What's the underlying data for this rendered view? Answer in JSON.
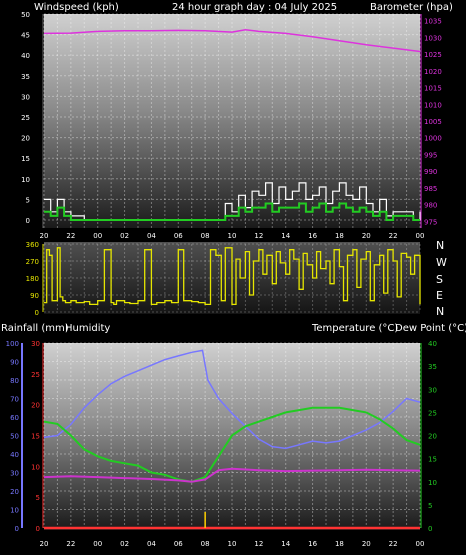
{
  "header": {
    "wind_label": "Windspeed (kph)",
    "title": "24 hour graph day : 04 July 2025",
    "baro_label": "Barometer (hpa)"
  },
  "lower_header": {
    "rain_label": "Rainfall (mm)",
    "humidity_label": "Humidity",
    "temp_label": "Temperature (°C)",
    "dew_label": "Dew Point (°C)"
  },
  "direction_labels": [
    "N",
    "W",
    "S",
    "E",
    "N"
  ],
  "colors": {
    "background": "#000000",
    "wind_avg": "#22cc22",
    "wind_gust": "#ffffff",
    "barometer": "#dd33dd",
    "wind_dir": "#e6e600",
    "humidity": "#7777ff",
    "rainfall": "#ff3333",
    "temperature": "#22cc22",
    "dew_point": "#cc33cc",
    "rain_bar": "#ffd000"
  },
  "chart_data": [
    {
      "type": "line",
      "name": "wind-baro",
      "x_ticks": [
        "20",
        "22",
        "00",
        "02",
        "04",
        "06",
        "08",
        "10",
        "12",
        "14",
        "16",
        "18",
        "20",
        "22",
        "00"
      ],
      "y_left_ticks": [
        0,
        5,
        10,
        15,
        20,
        25,
        30,
        35,
        40,
        45,
        50
      ],
      "y_left_range": [
        0,
        50
      ],
      "y_right_ticks": [
        975,
        980,
        985,
        990,
        995,
        1000,
        1005,
        1010,
        1015,
        1020,
        1025,
        1030,
        1035
      ],
      "y_right_range": [
        973,
        1037
      ],
      "x_range": [
        0,
        28
      ],
      "series": [
        {
          "key": "gust",
          "axis": "left",
          "x": [
            0,
            0.5,
            1,
            1.5,
            2,
            3,
            4,
            5,
            6,
            7,
            8,
            9,
            10,
            11,
            12,
            13,
            13.5,
            14,
            14.5,
            15,
            15.5,
            16,
            16.5,
            17,
            17.5,
            18,
            18.5,
            19,
            19.5,
            20,
            20.5,
            21,
            21.5,
            22,
            22.5,
            23,
            23.5,
            24,
            24.5,
            25,
            25.5,
            26,
            27.5,
            28
          ],
          "y": [
            5,
            2,
            5,
            2,
            1,
            0,
            0,
            0,
            0,
            0,
            0,
            0,
            0,
            0,
            0,
            0,
            4,
            2,
            6,
            3,
            7,
            6,
            9,
            4,
            8,
            5,
            7,
            9,
            5,
            6,
            8,
            4,
            7,
            9,
            6,
            5,
            8,
            4,
            2,
            5,
            1,
            2,
            0,
            2
          ]
        },
        {
          "key": "avg",
          "axis": "left",
          "x": [
            0,
            0.5,
            1,
            1.5,
            2,
            3,
            4,
            5,
            6,
            7,
            8,
            9,
            10,
            11,
            12,
            13,
            13.5,
            14,
            14.5,
            15,
            15.5,
            16,
            16.5,
            17,
            17.5,
            18,
            18.5,
            19,
            19.5,
            20,
            20.5,
            21,
            21.5,
            22,
            22.5,
            23,
            23.5,
            24,
            24.5,
            25,
            25.5,
            26,
            27.5,
            28
          ],
          "y": [
            2,
            1,
            3,
            1,
            0,
            0,
            0,
            0,
            0,
            0,
            0,
            0,
            0,
            0,
            0,
            0,
            1,
            1,
            3,
            2,
            3,
            3,
            4,
            2,
            3,
            3,
            3,
            4,
            2,
            3,
            4,
            2,
            3,
            4,
            3,
            2,
            3,
            2,
            1,
            2,
            0,
            1,
            0,
            0
          ]
        },
        {
          "key": "baro",
          "axis": "right",
          "x": [
            0,
            2,
            4,
            6,
            8,
            10,
            12,
            14,
            15,
            16,
            18,
            20,
            22,
            24,
            26,
            28
          ],
          "y": [
            1031.2,
            1031.3,
            1031.8,
            1032.0,
            1032.0,
            1032.1,
            1032.0,
            1031.6,
            1032.3,
            1031.8,
            1031.2,
            1030.2,
            1029.0,
            1027.8,
            1026.8,
            1025.8
          ]
        }
      ]
    },
    {
      "type": "line",
      "name": "wind-direction",
      "x_ticks": [
        "20",
        "22",
        "00",
        "02",
        "04",
        "06",
        "08",
        "10",
        "12",
        "14",
        "16",
        "18",
        "20",
        "22",
        "00"
      ],
      "y_ticks": [
        0,
        90,
        180,
        270,
        360
      ],
      "y_range": [
        0,
        360
      ],
      "x_range": [
        0,
        28
      ],
      "series": [
        {
          "key": "dir",
          "x": [
            0,
            0.2,
            0.4,
            0.6,
            1.0,
            1.2,
            1.4,
            1.6,
            2.0,
            2.4,
            3.0,
            3.4,
            4.0,
            4.5,
            5.0,
            5.2,
            5.4,
            6.0,
            6.4,
            7.0,
            7.5,
            8.0,
            8.4,
            9.0,
            9.5,
            10.0,
            10.4,
            11.0,
            11.5,
            12.0,
            12.4,
            12.8,
            13.2,
            13.5,
            14.0,
            14.3,
            14.6,
            15.0,
            15.3,
            15.6,
            16.0,
            16.3,
            16.6,
            17.0,
            17.3,
            17.6,
            18.0,
            18.3,
            18.6,
            19.0,
            19.3,
            19.6,
            20.0,
            20.3,
            20.6,
            21.0,
            21.3,
            21.6,
            22.0,
            22.3,
            22.6,
            23.0,
            23.3,
            23.6,
            24.0,
            24.3,
            24.6,
            25.0,
            25.3,
            25.6,
            26.0,
            26.3,
            26.6,
            27.0,
            27.3,
            27.6,
            28.0
          ],
          "y": [
            50,
            330,
            300,
            60,
            340,
            80,
            60,
            50,
            60,
            50,
            55,
            40,
            60,
            330,
            50,
            40,
            60,
            50,
            45,
            60,
            330,
            40,
            50,
            60,
            50,
            330,
            60,
            55,
            50,
            40,
            330,
            300,
            60,
            340,
            40,
            280,
            180,
            320,
            90,
            270,
            330,
            200,
            300,
            150,
            320,
            260,
            200,
            330,
            280,
            120,
            310,
            250,
            180,
            320,
            230,
            270,
            150,
            330,
            240,
            60,
            300,
            330,
            130,
            280,
            320,
            60,
            250,
            300,
            100,
            330,
            270,
            80,
            310,
            290,
            200,
            300,
            40
          ]
        }
      ]
    },
    {
      "type": "line",
      "name": "temp-humidity",
      "x_ticks": [
        "20",
        "22",
        "00",
        "02",
        "04",
        "06",
        "08",
        "10",
        "12",
        "14",
        "16",
        "18",
        "20",
        "22",
        "00"
      ],
      "y_humidity_ticks": [
        0,
        10,
        20,
        30,
        40,
        50,
        60,
        70,
        80,
        90,
        100
      ],
      "y_humidity_range": [
        0,
        100
      ],
      "y_rain_ticks": [
        0,
        5,
        10,
        15,
        20,
        25,
        30
      ],
      "y_rain_range": [
        0,
        30
      ],
      "y_temp_ticks": [
        0,
        5,
        10,
        15,
        20,
        25,
        30,
        35,
        40
      ],
      "y_temp_range": [
        0,
        40
      ],
      "x_range": [
        0,
        28
      ],
      "series": [
        {
          "key": "humidity",
          "axis": "humidity",
          "x": [
            0,
            1,
            2,
            3,
            4,
            5,
            6,
            7,
            8,
            9,
            10,
            11,
            11.8,
            12.2,
            13,
            14,
            15,
            16,
            17,
            18,
            19,
            20,
            21,
            22,
            23,
            24,
            25,
            26,
            27,
            28
          ],
          "y": [
            49,
            50,
            56,
            65,
            72,
            78,
            82,
            85,
            88,
            91,
            93,
            95,
            96,
            80,
            70,
            62,
            55,
            48,
            44,
            43,
            45,
            47,
            46,
            47,
            50,
            53,
            57,
            63,
            70,
            68
          ]
        },
        {
          "key": "temperature",
          "axis": "temp",
          "x": [
            0,
            1,
            2,
            3,
            4,
            5,
            6,
            7,
            8,
            9,
            10,
            11,
            12,
            13,
            14,
            15,
            16,
            17,
            18,
            19,
            20,
            21,
            22,
            23,
            24,
            25,
            26,
            27,
            28
          ],
          "y": [
            23.0,
            22.5,
            20.0,
            17.0,
            15.5,
            14.5,
            14.0,
            13.5,
            12.0,
            11.5,
            10.5,
            10.0,
            11.0,
            15.5,
            20.0,
            22.0,
            23.0,
            24.0,
            25.0,
            25.5,
            26.0,
            26.0,
            26.0,
            25.5,
            25.0,
            23.5,
            21.5,
            19.0,
            18.0
          ]
        },
        {
          "key": "dew_point",
          "axis": "temp",
          "x": [
            0,
            2,
            4,
            6,
            8,
            10,
            11,
            12,
            13,
            14,
            16,
            18,
            20,
            22,
            24,
            26,
            28
          ],
          "y": [
            11.0,
            11.2,
            11.0,
            10.8,
            10.6,
            10.3,
            10.0,
            10.5,
            12.5,
            12.8,
            12.5,
            12.3,
            12.4,
            12.5,
            12.6,
            12.5,
            12.4
          ]
        },
        {
          "key": "rainfall",
          "axis": "rain",
          "x": [
            0,
            28
          ],
          "y": [
            0,
            0
          ]
        }
      ],
      "rain_event_x": 12.0
    }
  ]
}
